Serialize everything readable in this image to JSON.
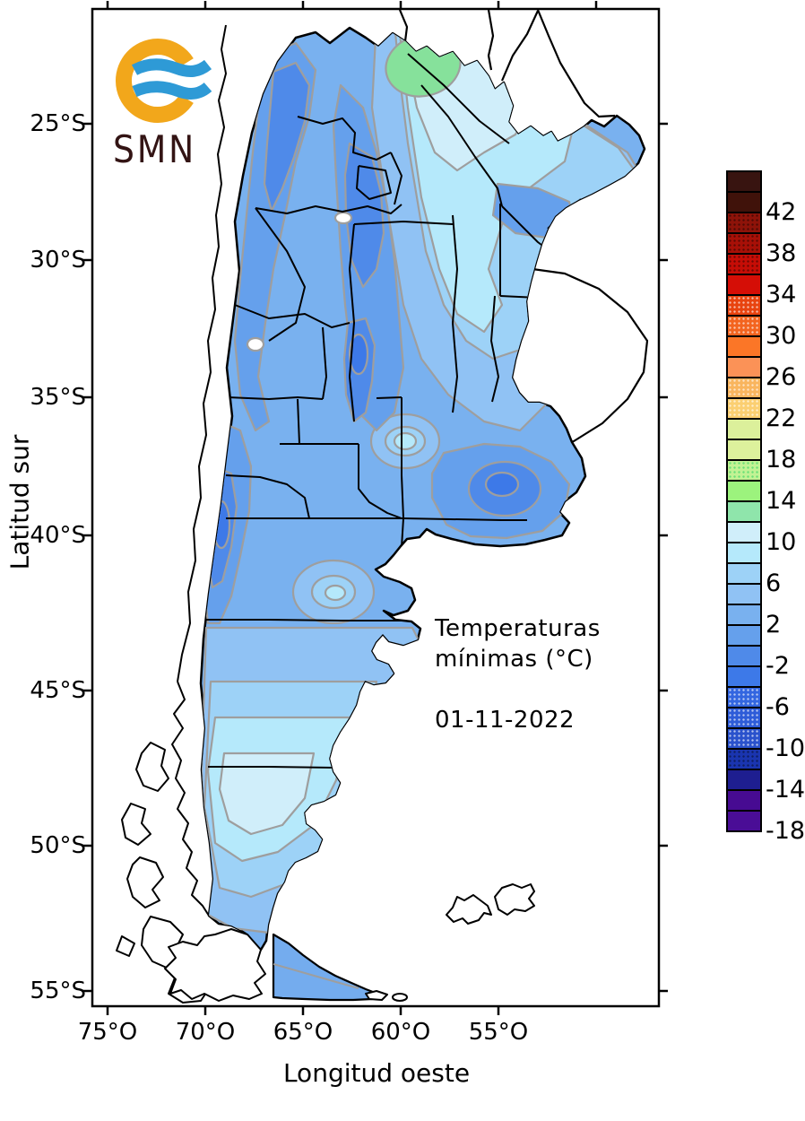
{
  "axes": {
    "y_title": "Latitud sur",
    "x_title": "Longitud oeste",
    "y_ticks": [
      "25°S",
      "30°S",
      "35°S",
      "40°S",
      "45°S",
      "50°S",
      "55°S"
    ],
    "x_ticks": [
      "75°O",
      "70°O",
      "65°O",
      "60°O",
      "55°O"
    ]
  },
  "annotations": {
    "map_title_line1": "Temperaturas",
    "map_title_line2": "mínimas (°C)",
    "date": "01-11-2022"
  },
  "logo": {
    "text": "SMN",
    "ring_color": "#F2A71B",
    "wave_color": "#2E9AD6",
    "text_color": "#331414"
  },
  "legend": {
    "title_implicit": "temperature scale (°C)",
    "labels": [
      "42",
      "38",
      "34",
      "30",
      "26",
      "22",
      "18",
      "14",
      "10",
      "6",
      "2",
      "-2",
      "-6",
      "-10",
      "-14",
      "-18"
    ],
    "cells": [
      {
        "color": "#381410"
      },
      {
        "color": "#40120a"
      },
      {
        "color": "#8e1309",
        "dots": "dark"
      },
      {
        "color": "#a81007",
        "dots": "dark"
      },
      {
        "color": "#c60d06",
        "dots": "dark"
      },
      {
        "color": "#d50e06"
      },
      {
        "color": "#e8430f",
        "dots": "light"
      },
      {
        "color": "#f3641f",
        "dots": "light"
      },
      {
        "color": "#fb7627"
      },
      {
        "color": "#fb9257"
      },
      {
        "color": "#f9b55e",
        "dots": "light"
      },
      {
        "color": "#fbcf72",
        "dots": "light"
      },
      {
        "color": "#dcf09b"
      },
      {
        "color": "#ddf19c"
      },
      {
        "color": "#c2f294",
        "dots": "green"
      },
      {
        "color": "#9cf37d"
      },
      {
        "color": "#8fe5ab"
      },
      {
        "color": "#d0eefa"
      },
      {
        "color": "#b5e9fb"
      },
      {
        "color": "#9dd2f7"
      },
      {
        "color": "#90c2f4"
      },
      {
        "color": "#79b1ef"
      },
      {
        "color": "#65a0ec"
      },
      {
        "color": "#4f8ae9"
      },
      {
        "color": "#3d79e8"
      },
      {
        "color": "#3366e0",
        "dots": "light"
      },
      {
        "color": "#2e5cd8",
        "dots": "light"
      },
      {
        "color": "#2a52cc",
        "dots": "light"
      },
      {
        "color": "#1a35b0",
        "dots": "dark"
      },
      {
        "color": "#1e1e90"
      },
      {
        "color": "#470b92"
      },
      {
        "color": "#4a0d96"
      }
    ]
  },
  "map": {
    "sea_color": "#ffffff",
    "land_base_color": "#79b1ef",
    "contour_color": "#9e9e9e",
    "political_border_color": "#000000",
    "band_colors": {
      "minus4_minus2": "#3d79e8",
      "minus2_0": "#4f8ae9",
      "0_2": "#65a0ec",
      "2_4": "#79b1ef",
      "4_6": "#90c2f4",
      "6_8": "#9dd2f7",
      "8_10": "#b5e9fb",
      "10_12": "#d0eefa",
      "12_14_green_patch": "#86e19b"
    }
  }
}
